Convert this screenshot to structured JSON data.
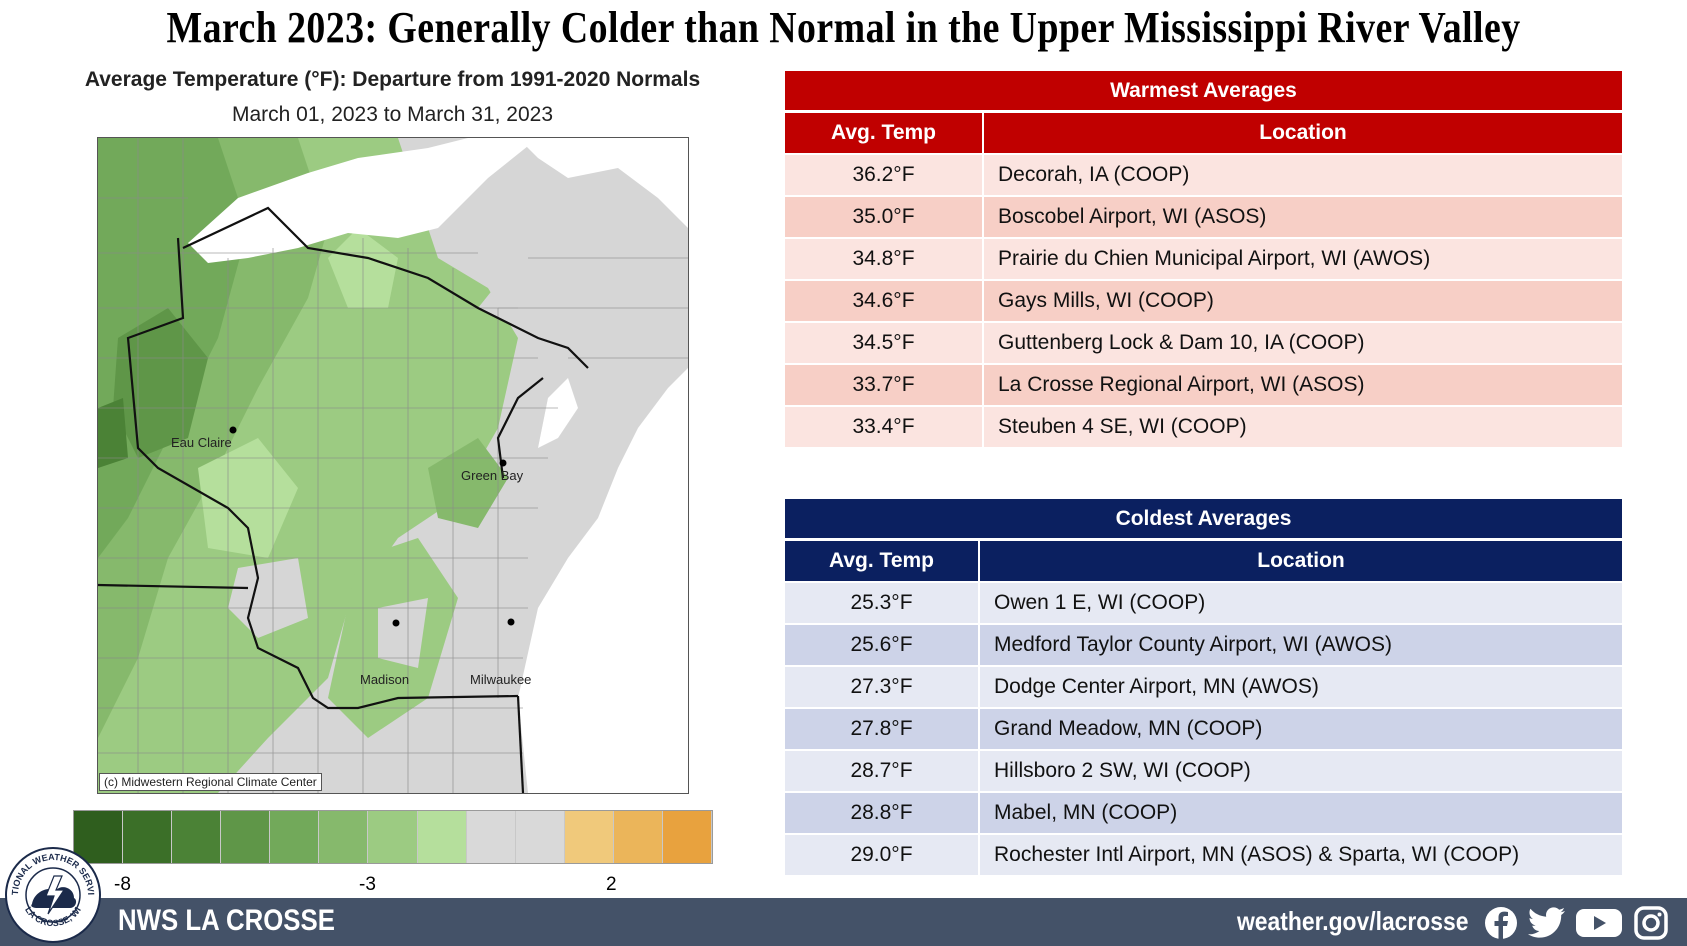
{
  "title": "March 2023: Generally Colder than Normal in the Upper Mississippi River Valley",
  "map": {
    "title": "Average Temperature (°F): Departure from 1991-2020 Normals",
    "subtitle": "March 01, 2023 to March 31, 2023",
    "cities": [
      "Eau Claire",
      "Green Bay",
      "Madison",
      "Milwaukee"
    ],
    "copyright": "(c) Midwestern Regional Climate Center",
    "legend": {
      "colors": [
        "#2f5e1e",
        "#3b6f28",
        "#4b8236",
        "#5f9648",
        "#72a95a",
        "#86b96c",
        "#9ccb82",
        "#b5df9c",
        "#d9d9d9",
        "#d9d9d9",
        "#f0c97b",
        "#ebb55a",
        "#e8a23e"
      ],
      "ticks": [
        "-8",
        "-3",
        "2"
      ]
    }
  },
  "warmest": {
    "title": "Warmest  Averages",
    "col_temp": "Avg. Temp",
    "col_location": "Location",
    "header_color": "#c00000",
    "row_colors": [
      "#fbe4e0",
      "#f7cfc6"
    ],
    "rows": [
      {
        "temp": "36.2°F",
        "location": "Decorah, IA (COOP)"
      },
      {
        "temp": "35.0°F",
        "location": "Boscobel  Airport, WI (ASOS)"
      },
      {
        "temp": "34.8°F",
        "location": "Prairie du Chien Municipal Airport, WI (AWOS)"
      },
      {
        "temp": "34.6°F",
        "location": "Gays Mills, WI (COOP)"
      },
      {
        "temp": "34.5°F",
        "location": "Guttenberg Lock & Dam 10, IA (COOP)"
      },
      {
        "temp": "33.7°F",
        "location": "La Crosse Regional Airport, WI (ASOS)"
      },
      {
        "temp": "33.4°F",
        "location": "Steuben 4 SE, WI  (COOP)"
      }
    ]
  },
  "coldest": {
    "title": "Coldest Averages",
    "col_temp": "Avg. Temp",
    "col_location": "Location",
    "header_color": "#0b2060",
    "row_colors": [
      "#e6e9f3",
      "#cdd3e8"
    ],
    "rows": [
      {
        "temp": "25.3°F",
        "location": "Owen 1 E, WI (COOP)"
      },
      {
        "temp": "25.6°F",
        "location": "Medford Taylor County Airport, WI (AWOS)"
      },
      {
        "temp": "27.3°F",
        "location": "Dodge Center Airport, MN (AWOS)"
      },
      {
        "temp": "27.8°F",
        "location": "Grand Meadow, MN (COOP)"
      },
      {
        "temp": "28.7°F",
        "location": "Hillsboro 2 SW, WI (COOP)"
      },
      {
        "temp": "28.8°F",
        "location": "Mabel, MN (COOP)"
      },
      {
        "temp": "29.0°F",
        "location": "Rochester Intl Airport, MN (ASOS) & Sparta, WI (COOP)"
      }
    ]
  },
  "footer": {
    "office": "NWS LA CROSSE",
    "url": "weather.gov/lacrosse",
    "bg_color": "#445268",
    "logo_text_top": "NATIONAL WEATHER SERVICE",
    "logo_text_bottom": "LA CROSSE, WI",
    "social_icons": [
      "facebook-icon",
      "twitter-icon",
      "youtube-icon",
      "instagram-icon"
    ]
  }
}
